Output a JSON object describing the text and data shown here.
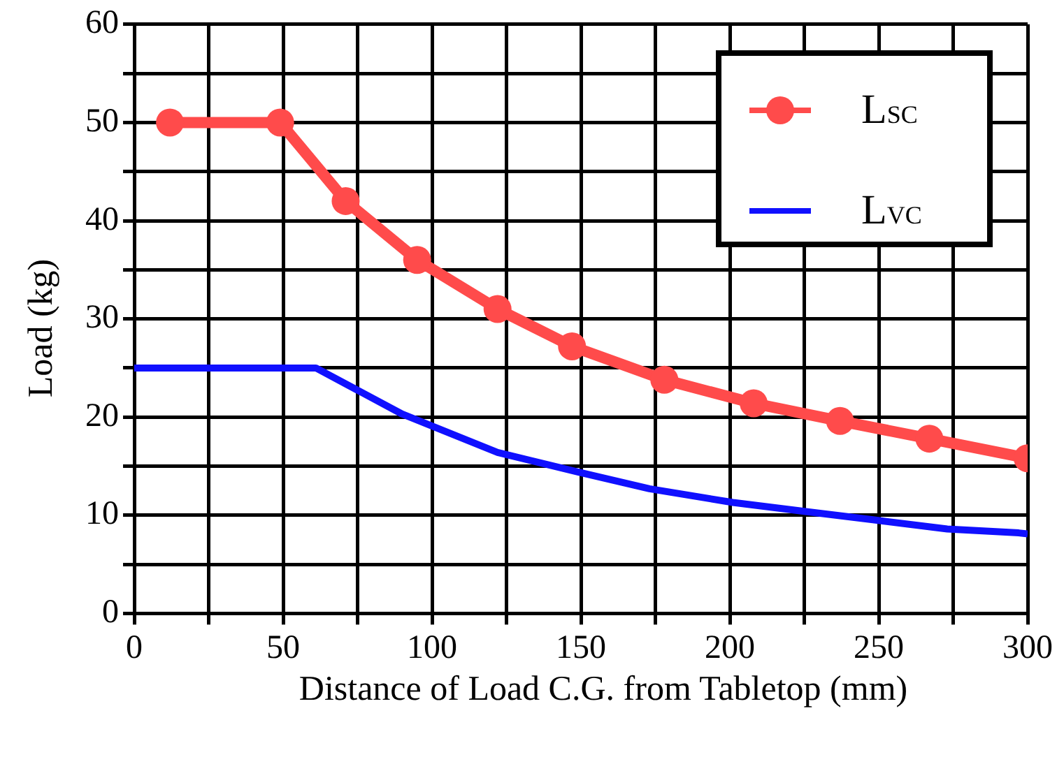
{
  "chart_data": {
    "type": "line",
    "xlabel": "Distance of Load C.G. from Tabletop (mm)",
    "ylabel": "Load (kg)",
    "xlim": [
      0,
      300
    ],
    "xticks": [
      0,
      {
        "value": 25,
        "label": null
      },
      50,
      {
        "value": 75,
        "label": null
      },
      100,
      {
        "value": 125,
        "label": null
      },
      150,
      {
        "value": 175,
        "label": null
      },
      200,
      {
        "value": 225,
        "label": null
      },
      250,
      {
        "value": 275,
        "label": null
      },
      300
    ],
    "ylim": [
      0,
      60
    ],
    "yticks": [
      0,
      {
        "value": 5,
        "label": null
      },
      10,
      {
        "value": 15,
        "label": null
      },
      20,
      {
        "value": 25,
        "label": null
      },
      30,
      {
        "value": 35,
        "label": null
      },
      40,
      {
        "value": 45,
        "label": null
      },
      50,
      {
        "value": 55,
        "label": null
      },
      60
    ],
    "grid": true,
    "legend": "top right",
    "line_style": "solid",
    "series": [
      {
        "name": "L$_{SC}$",
        "color": "#ff4b4b",
        "marker": "circle",
        "x": [
          12,
          49,
          71,
          95,
          122,
          147,
          178,
          208,
          237,
          267,
          300
        ],
        "values": [
          50,
          50,
          42,
          36,
          31,
          27.2,
          23.8,
          21.4,
          19.6,
          17.8,
          15.8
        ]
      },
      {
        "name": "L$_{VC}$",
        "color": "#1010ff",
        "marker": "none",
        "x": [
          0,
          61,
          90,
          122,
          149,
          173,
          201,
          225,
          249,
          273,
          297,
          300
        ],
        "values": [
          25,
          25,
          20.3,
          16.4,
          14.4,
          12.7,
          11.3,
          10.4,
          9.5,
          8.6,
          8.2,
          8.1
        ]
      }
    ]
  }
}
